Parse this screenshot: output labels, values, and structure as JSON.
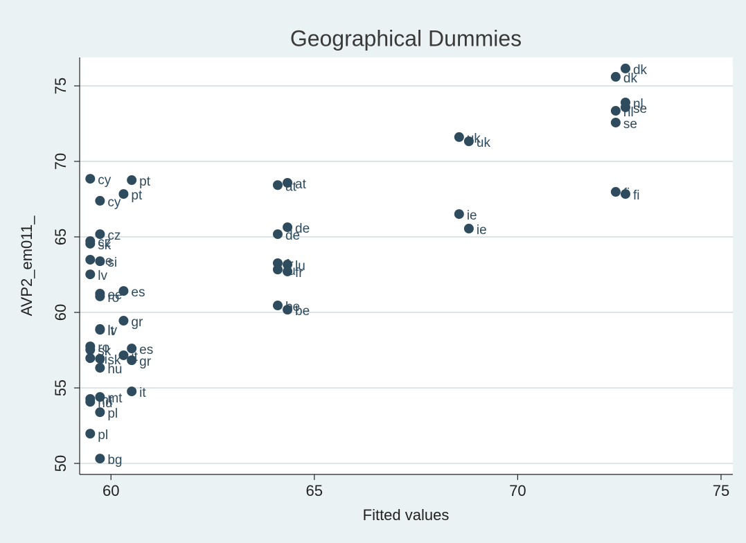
{
  "chart_data": {
    "type": "scatter",
    "title": "Geographical Dummies",
    "x_label": "Fitted values",
    "y_label": "AVP2_em011_",
    "xlim": [
      59.23,
      75.29
    ],
    "ylim": [
      49.27,
      76.88
    ],
    "xticks": [
      60,
      65,
      70,
      75
    ],
    "yticks": [
      50,
      55,
      60,
      65,
      70,
      75
    ],
    "grid": true,
    "series": [
      {
        "color": "#2f4b5e",
        "x": [
          59.49,
          59.73,
          60.51,
          60.31,
          59.73,
          59.49,
          59.49,
          59.73,
          59.49,
          59.49,
          59.73,
          59.73,
          60.31,
          60.31,
          59.73,
          59.73,
          59.49,
          59.49,
          59.49,
          59.73,
          59.73,
          60.31,
          60.51,
          60.51,
          60.51,
          59.73,
          59.49,
          59.49,
          59.73,
          59.49,
          59.73,
          64.1,
          64.34,
          64.34,
          64.1,
          64.1,
          64.34,
          64.1,
          64.34,
          64.1,
          64.34,
          68.56,
          68.8,
          68.56,
          68.8,
          72.65,
          72.41,
          72.65,
          72.65,
          72.41,
          72.41,
          72.41,
          72.65
        ],
        "values": [
          68.85,
          67.39,
          68.76,
          67.84,
          65.18,
          64.72,
          64.55,
          63.39,
          63.49,
          62.52,
          61.24,
          61.06,
          61.42,
          59.45,
          58.9,
          58.85,
          57.75,
          57.52,
          56.97,
          56.93,
          56.33,
          57.16,
          57.61,
          56.83,
          54.77,
          54.4,
          54.27,
          54.08,
          53.39,
          51.97,
          50.32,
          68.43,
          68.58,
          65.64,
          65.18,
          63.26,
          63.17,
          62.84,
          62.71,
          60.46,
          60.18,
          71.61,
          71.33,
          66.51,
          65.55,
          76.15,
          75.6,
          73.9,
          73.58,
          73.35,
          72.57,
          67.98,
          67.84
        ],
        "labels": [
          "cy",
          "cy",
          "pt",
          "pt",
          "cz",
          "cz",
          "sk",
          "si",
          "ee",
          "lv",
          "ee",
          "ro",
          "es",
          "gr",
          "lv",
          "lt",
          "ro",
          "sk",
          "si",
          "sk",
          "hu",
          "it",
          "es",
          "gr",
          "it",
          "mt",
          "mt",
          "hu",
          "pl",
          "pl",
          "bg",
          "at",
          "at",
          "de",
          "de",
          "fr",
          "lu",
          "lu",
          "fr",
          "be",
          "be",
          "uk",
          "uk",
          "ie",
          "ie",
          "dk",
          "dk",
          "nl",
          "se",
          "nl",
          "se",
          "fi",
          "fi"
        ]
      }
    ]
  }
}
